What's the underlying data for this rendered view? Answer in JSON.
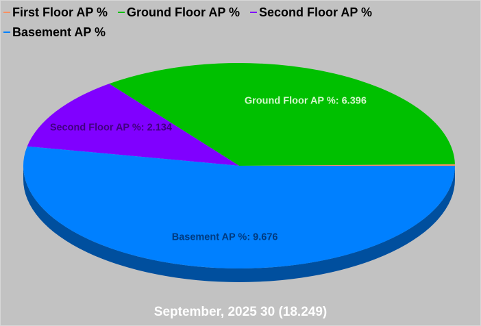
{
  "chart_data": {
    "type": "pie",
    "style": "3d",
    "title": "September, 2025 30 (18.249)",
    "categories": [
      "First Floor AP %",
      "Ground Floor AP %",
      "Second Floor AP %",
      "Basement AP %"
    ],
    "values": [
      0.043,
      6.396,
      2.134,
      9.676
    ],
    "colors": [
      "#ff9060",
      "#00c000",
      "#8000ff",
      "#0080ff"
    ],
    "label_colors": [
      null,
      "#d4f7cc",
      "#400080",
      "#003a80"
    ],
    "legend_position": "top-left"
  },
  "colors": {
    "background": "#c2c2c2",
    "title": "#ffffff",
    "legend_text": "#000000"
  }
}
